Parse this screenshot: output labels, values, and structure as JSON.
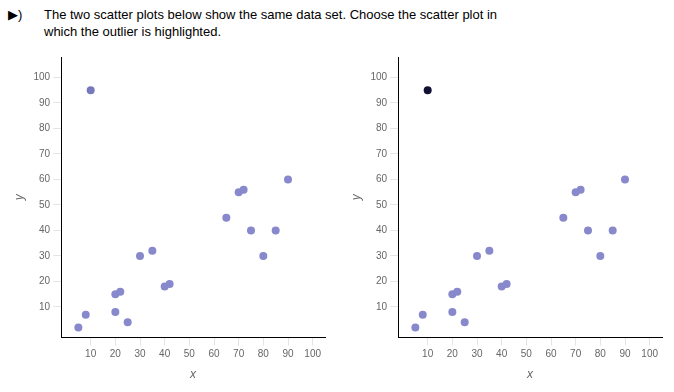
{
  "chart_data": [
    {
      "type": "scatter",
      "title": [
        "The two scatter plots below show the same data set. Choose the scatter plot in",
        "which the outlier is highlighted."
      ],
      "annotations": [
        "▶)"
      ],
      "x_label": "x",
      "y_label": "y",
      "series": [
        {
          "color": "#8888cc",
          "x": [
            5,
            8,
            20,
            20,
            22,
            25,
            30,
            35,
            40,
            42,
            65,
            70,
            72,
            75,
            80,
            90,
            85
          ],
          "values": [
            2,
            7,
            8,
            15,
            16,
            4,
            30,
            32,
            18,
            19,
            45,
            55,
            56,
            40,
            30,
            60,
            40
          ]
        },
        {
          "color": "#7777bb",
          "x": [
            10
          ],
          "values": [
            95
          ]
        }
      ],
      "xlim": [
        -2,
        105
      ],
      "ylim": [
        -2,
        108
      ],
      "xticks": [
        10,
        20,
        30,
        40,
        50,
        60,
        70,
        80,
        90,
        100
      ],
      "yticks": [
        10,
        20,
        30,
        40,
        50,
        60,
        70,
        80,
        90,
        100
      ],
      "grid": false
    },
    {
      "type": "scatter",
      "x_label": "x",
      "y_label": "y",
      "series": [
        {
          "color": "#8888cc",
          "x": [
            5,
            8,
            20,
            20,
            22,
            25,
            30,
            35,
            40,
            42,
            65,
            70,
            72,
            75,
            80,
            90,
            85
          ],
          "values": [
            2,
            7,
            8,
            15,
            16,
            4,
            30,
            32,
            18,
            19,
            45,
            55,
            56,
            40,
            30,
            60,
            40
          ]
        },
        {
          "color": "#111133",
          "x": [
            10
          ],
          "values": [
            95
          ]
        }
      ],
      "xlim": [
        -2,
        105
      ],
      "ylim": [
        -2,
        108
      ],
      "xticks": [
        10,
        20,
        30,
        40,
        50,
        60,
        70,
        80,
        90,
        100
      ],
      "yticks": [
        10,
        20,
        30,
        40,
        50,
        60,
        70,
        80,
        90,
        100
      ],
      "grid": false
    }
  ]
}
